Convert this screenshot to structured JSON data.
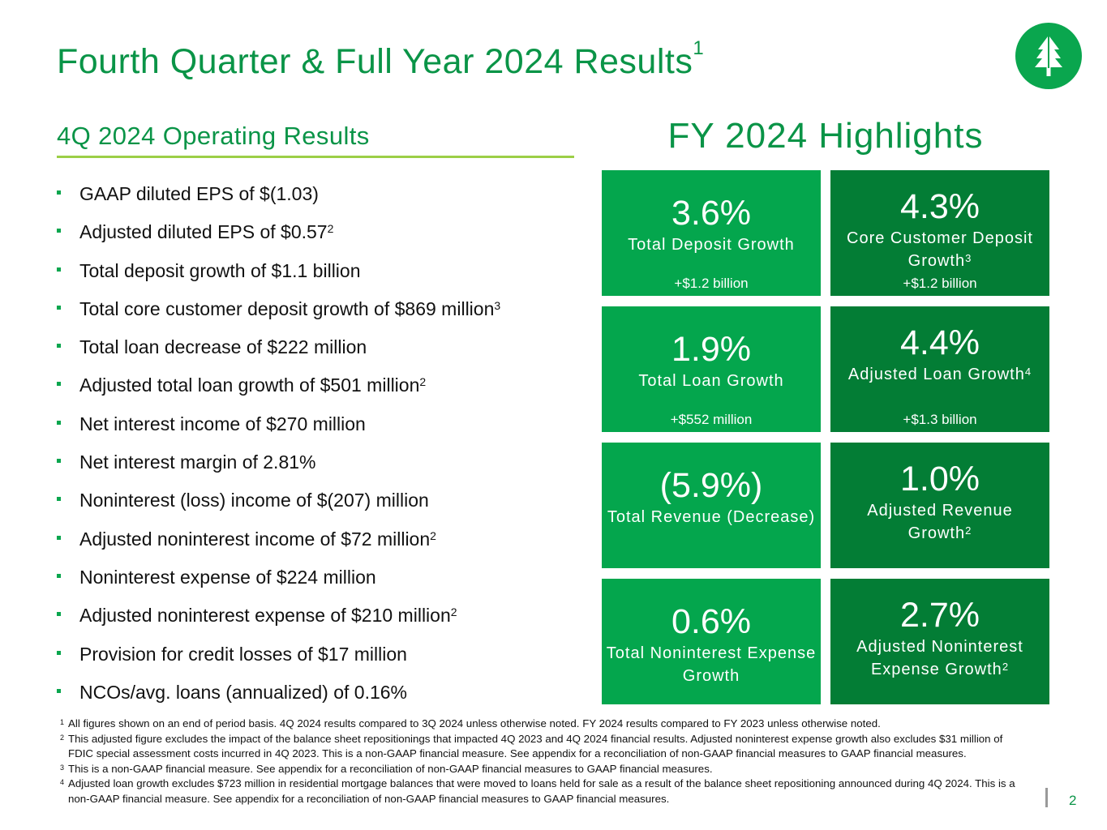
{
  "header": {
    "title": "Fourth Quarter & Full Year 2024 Results",
    "title_sup": "1",
    "logo_icon": "tree-logo-icon"
  },
  "operating": {
    "heading": "4Q 2024 Operating Results",
    "bullets": [
      {
        "text": "GAAP diluted EPS of $(1.03)",
        "sup": ""
      },
      {
        "text": "Adjusted diluted EPS of $0.57",
        "sup": "2"
      },
      {
        "text": "Total deposit growth of $1.1 billion",
        "sup": ""
      },
      {
        "text": "Total core customer deposit growth of $869 million",
        "sup": "3"
      },
      {
        "text": "Total loan decrease of $222 million",
        "sup": ""
      },
      {
        "text": "Adjusted total loan growth of $501 million",
        "sup": "2"
      },
      {
        "text": "Net interest income of $270 million",
        "sup": ""
      },
      {
        "text": "Net interest margin of 2.81%",
        "sup": ""
      },
      {
        "text": "Noninterest (loss) income of $(207) million",
        "sup": ""
      },
      {
        "text": "Adjusted noninterest income of $72 million",
        "sup": "2"
      },
      {
        "text": "Noninterest expense of $224 million",
        "sup": ""
      },
      {
        "text": "Adjusted noninterest expense of $210 million",
        "sup": "2"
      },
      {
        "text": "Provision for credit losses of $17 million",
        "sup": ""
      },
      {
        "text": "NCOs/avg. loans (annualized) of 0.16%",
        "sup": ""
      }
    ]
  },
  "highlights": {
    "heading": "FY 2024 Highlights",
    "tiles": [
      {
        "value": "3.6%",
        "label": "Total Deposit Growth",
        "sup": "",
        "sub": "+$1.2 billion"
      },
      {
        "value": "4.3%",
        "label": "Core Customer Deposit Growth",
        "sup": "3",
        "sub": "+$1.2 billion"
      },
      {
        "value": "1.9%",
        "label": "Total Loan Growth",
        "sup": "",
        "sub": "+$552 million"
      },
      {
        "value": "4.4%",
        "label": "Adjusted Loan Growth",
        "sup": "4",
        "sub": "+$1.3 billion"
      },
      {
        "value": "(5.9%)",
        "label": "Total Revenue (Decrease)",
        "sup": "",
        "sub": ""
      },
      {
        "value": "1.0%",
        "label": "Adjusted Revenue Growth",
        "sup": "2",
        "sub": ""
      },
      {
        "value": "0.6%",
        "label": "Total Noninterest Expense Growth",
        "sup": "",
        "sub": ""
      },
      {
        "value": "2.7%",
        "label": "Adjusted Noninterest Expense Growth",
        "sup": "2",
        "sub": ""
      }
    ]
  },
  "footnotes": [
    {
      "num": "1",
      "text": "All figures shown on an end of period basis. 4Q 2024 results compared to 3Q 2024 unless otherwise noted. FY 2024 results compared to FY 2023 unless otherwise noted."
    },
    {
      "num": "2",
      "text": "This adjusted figure excludes the impact of the balance sheet repositionings that impacted 4Q 2023 and 4Q 2024 financial results. Adjusted noninterest expense growth also excludes $31 million of FDIC special assessment costs incurred in 4Q 2023. This is a non-GAAP financial measure. See appendix for a reconciliation of non-GAAP financial measures to GAAP financial measures."
    },
    {
      "num": "3",
      "text": "This is a non-GAAP financial measure. See appendix for a reconciliation of non-GAAP financial measures to GAAP financial measures."
    },
    {
      "num": "4",
      "text": "Adjusted loan growth excludes $723 million in residential mortgage balances that were moved to loans held for sale as a result of the balance sheet repositioning announced during 4Q 2024. This is a non-GAAP financial measure. See appendix for a reconciliation of non-GAAP financial measures to GAAP financial measures."
    }
  ],
  "page_number": "2",
  "colors": {
    "brand_green": "#0a9447",
    "tile_light": "#04a64d",
    "tile_dark": "#037d35",
    "accent_lime": "#9ccf47"
  }
}
